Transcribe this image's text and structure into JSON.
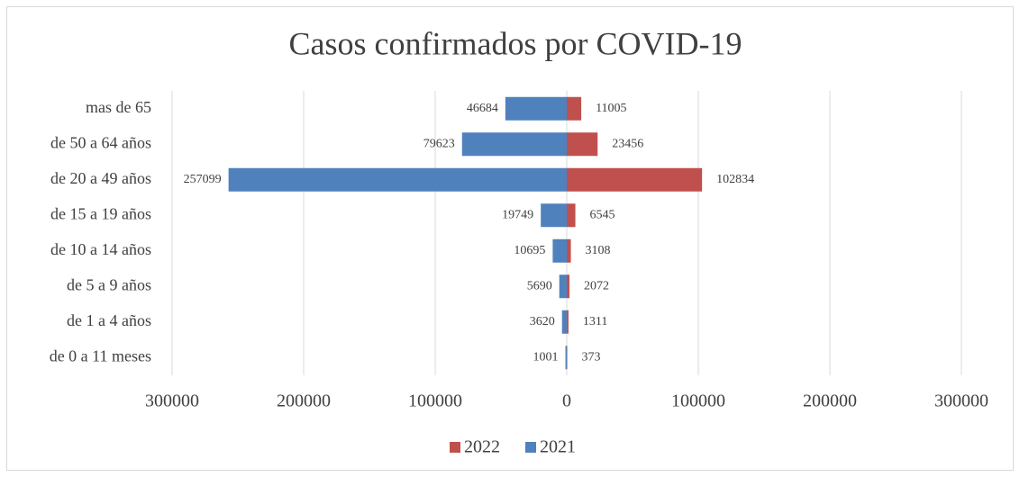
{
  "chart_data": {
    "type": "bar",
    "orientation": "horizontal",
    "stacked": true,
    "title": "Casos confirmados por COVID-19",
    "categories": [
      "mas de 65",
      "de 50 a 64 años",
      "de 20 a 49 años",
      "de 15 a 19 años",
      "de 10 a 14 años",
      "de 5 a 9 años",
      "de 1 a 4 años",
      "de 0 a 11 meses"
    ],
    "series": [
      {
        "name": "2022",
        "color": "#c0504d",
        "values": [
          11005,
          23456,
          102834,
          6545,
          3108,
          2072,
          1311,
          373
        ]
      },
      {
        "name": "2021",
        "color": "#4f81bd",
        "values": [
          -46684,
          -79623,
          -257099,
          -19749,
          -10695,
          -5690,
          -3620,
          -1001
        ],
        "value_labels": [
          "46684",
          "79623",
          "257099",
          "19749",
          "10695",
          "5690",
          "3620",
          "1001"
        ]
      }
    ],
    "xlim": [
      -300000,
      300000
    ],
    "xticks": [
      {
        "value": -300000,
        "label": "300000"
      },
      {
        "value": -200000,
        "label": "200000"
      },
      {
        "value": -100000,
        "label": "100000"
      },
      0,
      100000,
      200000,
      300000
    ],
    "grid": true,
    "legend": "bottom"
  }
}
